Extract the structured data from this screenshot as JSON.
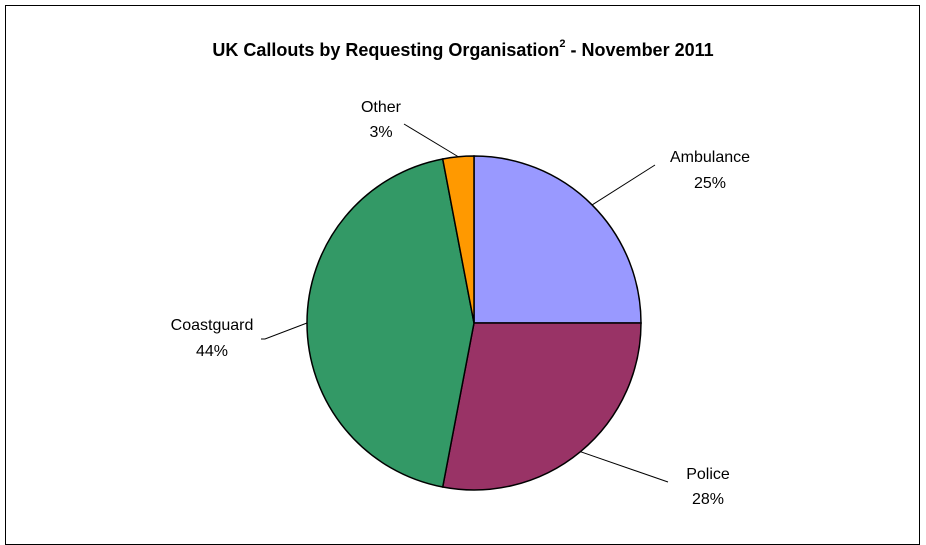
{
  "chart_data": {
    "type": "pie",
    "title": "UK Callouts by Requesting Organisation",
    "title_superscript": "2",
    "title_suffix": " - November 2011",
    "start_angle_deg": 0,
    "direction": "clockwise",
    "slices": [
      {
        "label": "Ambulance",
        "value": 25,
        "value_label": "25%",
        "color": "#9999ff"
      },
      {
        "label": "Police",
        "value": 28,
        "value_label": "28%",
        "color": "#993366"
      },
      {
        "label": "Coastguard",
        "value": 44,
        "value_label": "44%",
        "color": "#339966"
      },
      {
        "label": "Other",
        "value": 3,
        "value_label": "3%",
        "color": "#ff9900"
      }
    ],
    "legend": "none"
  }
}
